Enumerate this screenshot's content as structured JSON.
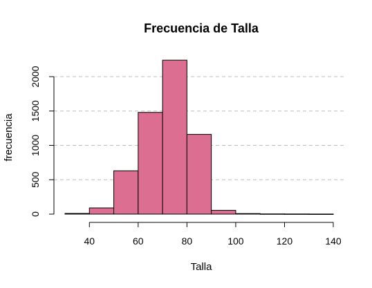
{
  "chart_data": {
    "type": "bar",
    "title": "Frecuencia de Talla",
    "xlabel": "Talla",
    "ylabel": "frecuencia",
    "bins": [
      {
        "from": 30,
        "to": 40,
        "count": 10
      },
      {
        "from": 40,
        "to": 50,
        "count": 90
      },
      {
        "from": 50,
        "to": 60,
        "count": 630
      },
      {
        "from": 60,
        "to": 70,
        "count": 1480
      },
      {
        "from": 70,
        "to": 80,
        "count": 2240
      },
      {
        "from": 80,
        "to": 90,
        "count": 1160
      },
      {
        "from": 90,
        "to": 100,
        "count": 55
      },
      {
        "from": 100,
        "to": 110,
        "count": 8
      },
      {
        "from": 110,
        "to": 120,
        "count": 3
      },
      {
        "from": 120,
        "to": 130,
        "count": 2
      },
      {
        "from": 130,
        "to": 140,
        "count": 1
      }
    ],
    "xticks": [
      40,
      60,
      80,
      100,
      120,
      140
    ],
    "xtick_labels": [
      "40",
      "60",
      "80",
      "100",
      "120",
      "140"
    ],
    "yticks": [
      0,
      500,
      1000,
      1500,
      2000
    ],
    "ytick_labels": [
      "0",
      "500",
      "1000",
      "1500",
      "2000"
    ],
    "xlim": [
      30,
      140
    ],
    "ylim": [
      0,
      2000
    ],
    "grid": "horizontal dashed",
    "bar_color": "#dc6e91"
  }
}
